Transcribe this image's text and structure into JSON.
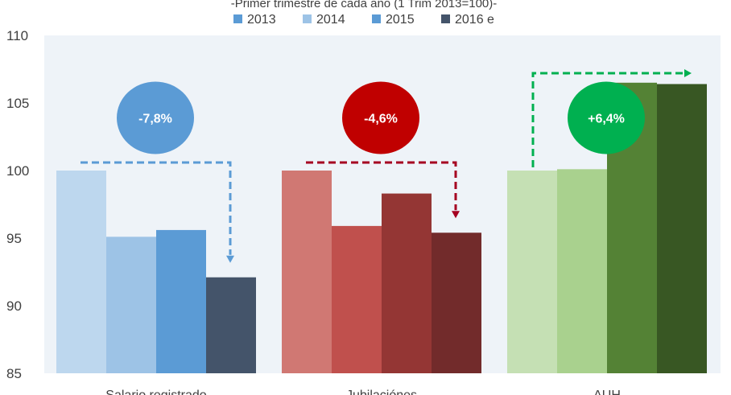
{
  "chart_data": {
    "type": "bar",
    "title": "",
    "subtitle": "-Primer trimestre de cada año (1 Trim 2013=100)-",
    "xlabel": "",
    "ylabel": "",
    "ylim": [
      85,
      110
    ],
    "yticks": [
      85,
      90,
      95,
      100,
      105,
      110
    ],
    "grid": false,
    "legend_position": "top",
    "categories": [
      "Salario registrado",
      "Jubilaciónes",
      "AUH"
    ],
    "series": [
      {
        "name": "2013",
        "values": [
          100.0,
          100.0,
          100.0
        ]
      },
      {
        "name": "2014",
        "values": [
          95.1,
          95.9,
          100.1
        ]
      },
      {
        "name": "2015",
        "values": [
          95.6,
          98.3,
          106.5
        ]
      },
      {
        "name": "2016 e",
        "values": [
          92.1,
          95.4,
          106.4
        ]
      }
    ],
    "legend_colors": [
      "#5b9bd5",
      "#9dc3e6",
      "#5b9bd5",
      "#44546a"
    ],
    "bar_colors": [
      [
        "#bdd7ee",
        "#9dc3e6",
        "#5b9bd5",
        "#44546a"
      ],
      [
        "#d07873",
        "#c0504d",
        "#943634",
        "#722b2b"
      ],
      [
        "#c5e0b4",
        "#a9d18e",
        "#548235",
        "#385723"
      ]
    ],
    "annotations": [
      {
        "text": "-7,8%",
        "color": "#5b9bd5",
        "arrow_color": "#5b9bd5",
        "direction": "down"
      },
      {
        "text": "-4,6%",
        "color": "#c00000",
        "arrow_color": "#a50021",
        "direction": "down"
      },
      {
        "text": "+6,4%",
        "color": "#00b050",
        "arrow_color": "#00b050",
        "direction": "up"
      }
    ],
    "plot_background": "#eef3f8"
  }
}
